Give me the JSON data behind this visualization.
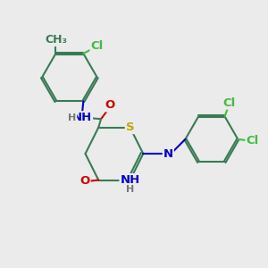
{
  "bg_color": "#ebebeb",
  "bond_color": "#3a7a55",
  "bond_width": 1.5,
  "atom_colors": {
    "C": "#3a7a55",
    "N": "#0000cc",
    "O": "#cc0000",
    "S": "#bbaa00",
    "Cl": "#44bb44",
    "H": "#777777",
    "Me": "#3a7a55"
  },
  "font_size": 9.5,
  "fig_size": [
    3.0,
    3.0
  ],
  "dpi": 100,
  "xlim": [
    0,
    10
  ],
  "ylim": [
    0,
    10
  ]
}
